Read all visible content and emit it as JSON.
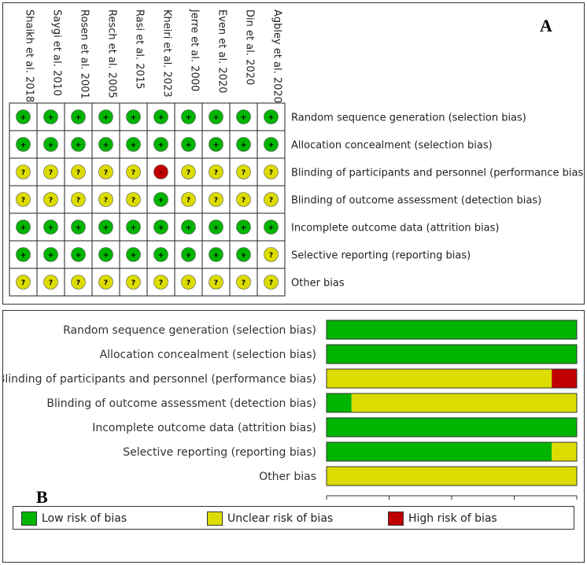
{
  "panel_a": {
    "letter": "A",
    "studies": [
      "Shaikh et al. 2018",
      "Saygi et al. 2010",
      "Rosen et al. 2001",
      "Resch et al. 2005",
      "Rasi et al. 2015",
      "Kheiri et al. 2023",
      "Jerre et al. 2000",
      "Even et al. 2020",
      "Din et al. 2020",
      "Agbley et al. 2020"
    ],
    "domains": [
      "Random sequence generation (selection bias)",
      "Allocation concealment (selection bias)",
      "Blinding of participants and personnel (performance bias)",
      "Blinding of outcome assessment (detection bias)",
      "Incomplete outcome data (attrition bias)",
      "Selective reporting (reporting bias)",
      "Other bias"
    ],
    "judgements": [
      [
        "low",
        "low",
        "low",
        "low",
        "low",
        "low",
        "low",
        "low",
        "low",
        "low"
      ],
      [
        "low",
        "low",
        "low",
        "low",
        "low",
        "low",
        "low",
        "low",
        "low",
        "low"
      ],
      [
        "unclear",
        "unclear",
        "unclear",
        "unclear",
        "unclear",
        "high",
        "unclear",
        "unclear",
        "unclear",
        "unclear"
      ],
      [
        "unclear",
        "unclear",
        "unclear",
        "unclear",
        "unclear",
        "low",
        "unclear",
        "unclear",
        "unclear",
        "unclear"
      ],
      [
        "low",
        "low",
        "low",
        "low",
        "low",
        "low",
        "low",
        "low",
        "low",
        "low"
      ],
      [
        "low",
        "low",
        "low",
        "low",
        "low",
        "low",
        "low",
        "low",
        "low",
        "unclear"
      ],
      [
        "unclear",
        "unclear",
        "unclear",
        "unclear",
        "unclear",
        "unclear",
        "unclear",
        "unclear",
        "unclear",
        "unclear"
      ]
    ],
    "symbols": {
      "low": "+",
      "unclear": "?",
      "high": "-"
    }
  },
  "chart_data": {
    "type": "bar",
    "orientation": "horizontal",
    "stacked": true,
    "letter": "B",
    "categories": [
      "Random sequence generation (selection bias)",
      "Allocation concealment (selection bias)",
      "Blinding of participants and personnel (performance bias)",
      "Blinding of outcome assessment (detection bias)",
      "Incomplete outcome data (attrition bias)",
      "Selective reporting (reporting bias)",
      "Other bias"
    ],
    "series": [
      {
        "name": "Low risk of bias",
        "color": "#00b400",
        "values": [
          100,
          100,
          0,
          10,
          100,
          90,
          0
        ]
      },
      {
        "name": "Unclear risk of bias",
        "color": "#dcdc00",
        "values": [
          0,
          0,
          90,
          90,
          0,
          10,
          100
        ]
      },
      {
        "name": "High risk of bias",
        "color": "#c00000",
        "values": [
          0,
          0,
          10,
          0,
          0,
          0,
          0
        ]
      }
    ],
    "xlim": [
      0,
      100
    ],
    "xticks": [
      "0%",
      "25%",
      "50%",
      "75%",
      "100%"
    ],
    "legend_position": "bottom"
  },
  "colors": {
    "low": "#00b400",
    "unclear": "#dcdc00",
    "high": "#c00000"
  }
}
